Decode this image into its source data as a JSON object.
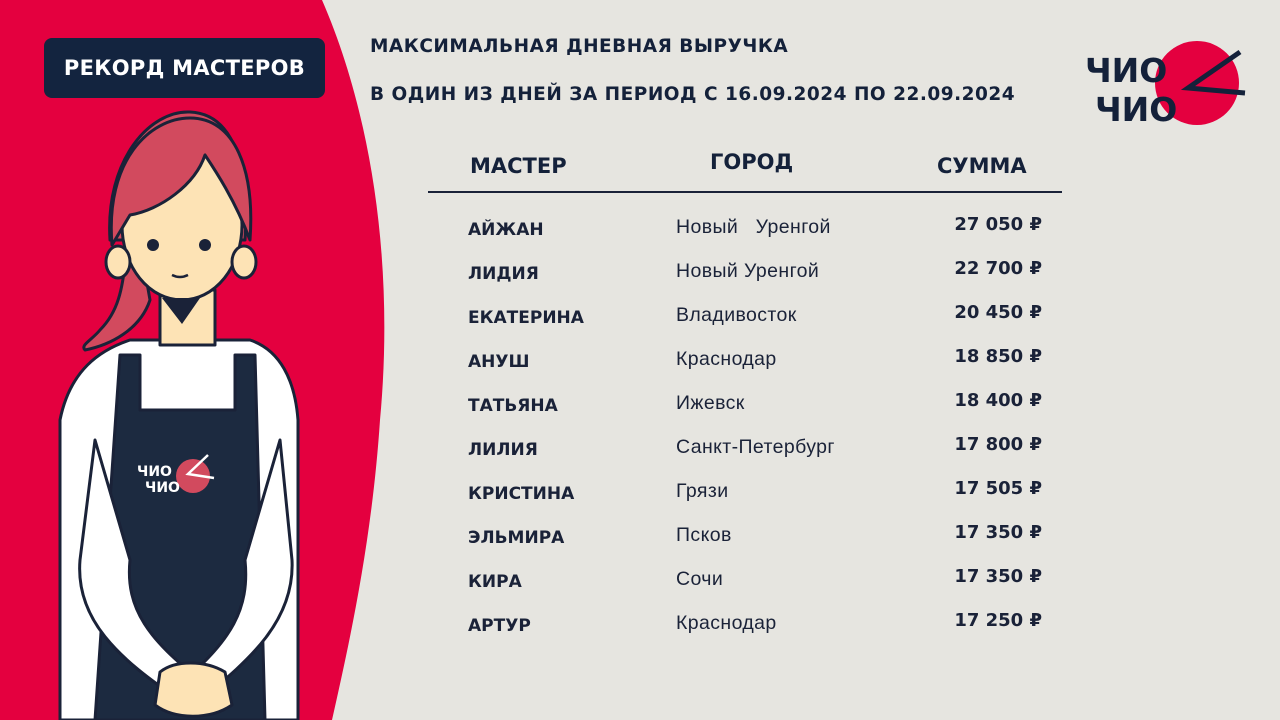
{
  "badge": "РЕКОРД МАСТЕРОВ",
  "title": {
    "line1": "МАКСИМАЛЬНАЯ ДНЕВНАЯ ВЫРУЧКА",
    "line2": "В ОДИН ИЗ ДНЕЙ ЗА ПЕРИОД С 16.09.2024 ПО 22.09.2024"
  },
  "logo": {
    "line1": "ЧИО",
    "line2": "ЧИО"
  },
  "colors": {
    "accent": "#e4003f",
    "navy": "#13243f",
    "background": "#e6e5e0"
  },
  "table": {
    "headers": {
      "master": "МАСТЕР",
      "city": "ГОРОД",
      "sum": "СУММА"
    },
    "rows": [
      {
        "name": "АЙЖАН",
        "city": "Новый   Уренгой",
        "sum": "27 050 ₽"
      },
      {
        "name": "ЛИДИЯ",
        "city": "Новый Уренгой",
        "sum": "22 700 ₽"
      },
      {
        "name": "ЕКАТЕРИНА",
        "city": "Владивосток",
        "sum": "20 450 ₽"
      },
      {
        "name": "АНУШ",
        "city": "Краснодар",
        "sum": "18 850 ₽"
      },
      {
        "name": "ТАТЬЯНА",
        "city": "Ижевск",
        "sum": "18 400 ₽"
      },
      {
        "name": "ЛИЛИЯ",
        "city": "Санкт-Петербург",
        "sum": "17 800 ₽"
      },
      {
        "name": "КРИСТИНА",
        "city": "Грязи",
        "sum": "17 505 ₽"
      },
      {
        "name": "ЭЛЬМИРА",
        "city": "Псков",
        "sum": "17 350 ₽"
      },
      {
        "name": "КИРА",
        "city": "Сочи",
        "sum": "17 350 ₽"
      },
      {
        "name": "АРТУР",
        "city": "Краснодар",
        "sum": "17 250 ₽"
      }
    ]
  }
}
